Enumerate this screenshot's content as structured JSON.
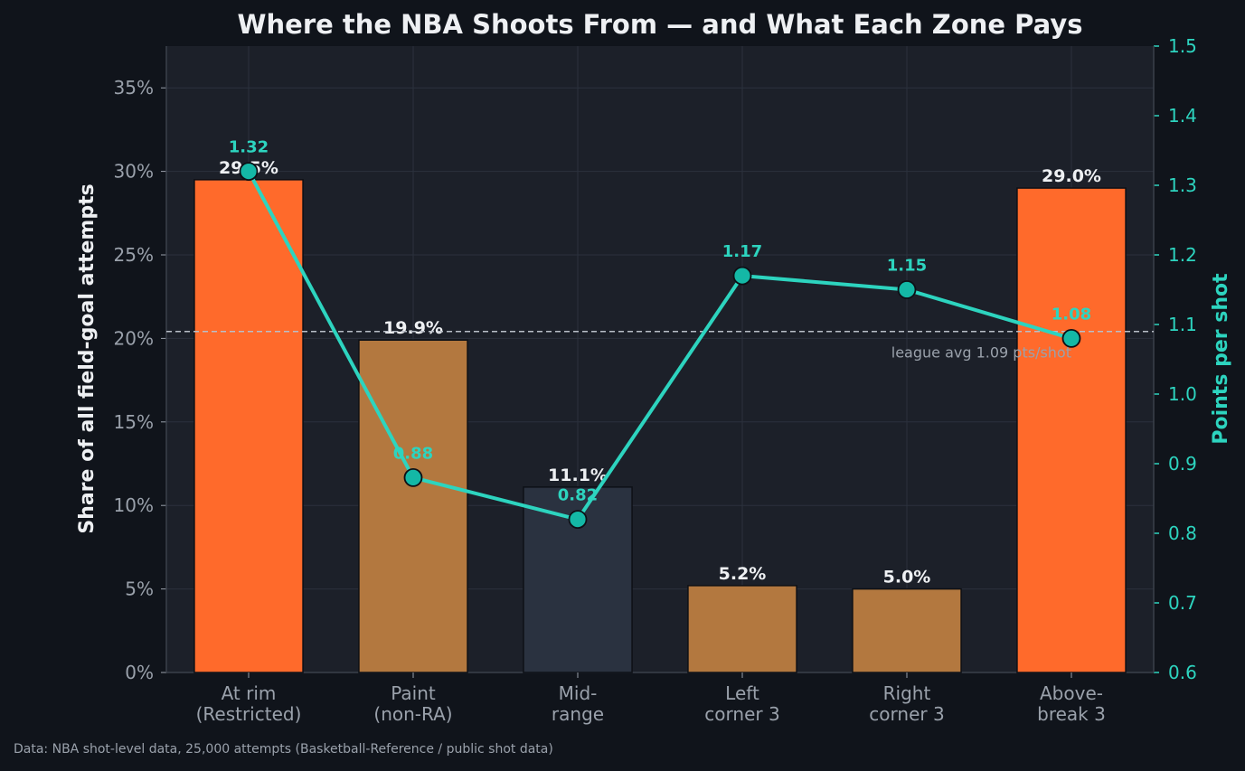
{
  "chart_data": {
    "type": "bar",
    "title": "Where the NBA Shoots From — and What Each Zone Pays",
    "categories": [
      [
        "At rim",
        "(Restricted)"
      ],
      [
        "Paint",
        "(non-RA)"
      ],
      [
        "Mid-",
        "range"
      ],
      [
        "Left",
        "corner 3"
      ],
      [
        "Right",
        "corner 3"
      ],
      [
        "Above-",
        "break 3"
      ]
    ],
    "series": [
      {
        "axis": "left",
        "kind": "bar",
        "values": [
          29.5,
          19.9,
          11.1,
          5.2,
          5.0,
          29.0
        ],
        "labels": [
          "29.5%",
          "19.9%",
          "11.1%",
          "5.2%",
          "5.0%",
          "29.0%"
        ],
        "colors": [
          "#ff6a2b",
          "#b3783f",
          "#2a3240",
          "#b3783f",
          "#b3783f",
          "#ff6a2b"
        ]
      },
      {
        "axis": "right",
        "kind": "line",
        "values": [
          1.32,
          0.88,
          0.82,
          1.17,
          1.15,
          1.08
        ],
        "labels": [
          "1.32",
          "0.88",
          "0.82",
          "1.17",
          "1.15",
          "1.08"
        ],
        "color": "#2dd4bf"
      }
    ],
    "ylabel": "Share of all field-goal attempts",
    "ylabel_right": "Points per shot",
    "ylim": [
      0,
      37.5
    ],
    "ylim_right": [
      0.6,
      1.5
    ],
    "yticks": [
      "0%",
      "5%",
      "10%",
      "15%",
      "20%",
      "25%",
      "30%",
      "35%"
    ],
    "yticks_right": [
      "0.6",
      "0.7",
      "0.8",
      "0.9",
      "1.0",
      "1.1",
      "1.2",
      "1.3",
      "1.4",
      "1.5"
    ],
    "reference_line": {
      "value": 1.09,
      "axis": "right",
      "label": "league avg 1.09 pts/shot"
    },
    "grid": true,
    "legend": "none"
  },
  "footer": "Data: NBA shot-level data, 25,000 attempts (Basketball-Reference / public shot data)",
  "colors": {
    "background": "#10141b",
    "plot_bg": "#1c2029",
    "grid": "#2b313d",
    "text": "#eef0f3",
    "muted": "#9aa1ab",
    "accent": "#2dd4bf"
  }
}
